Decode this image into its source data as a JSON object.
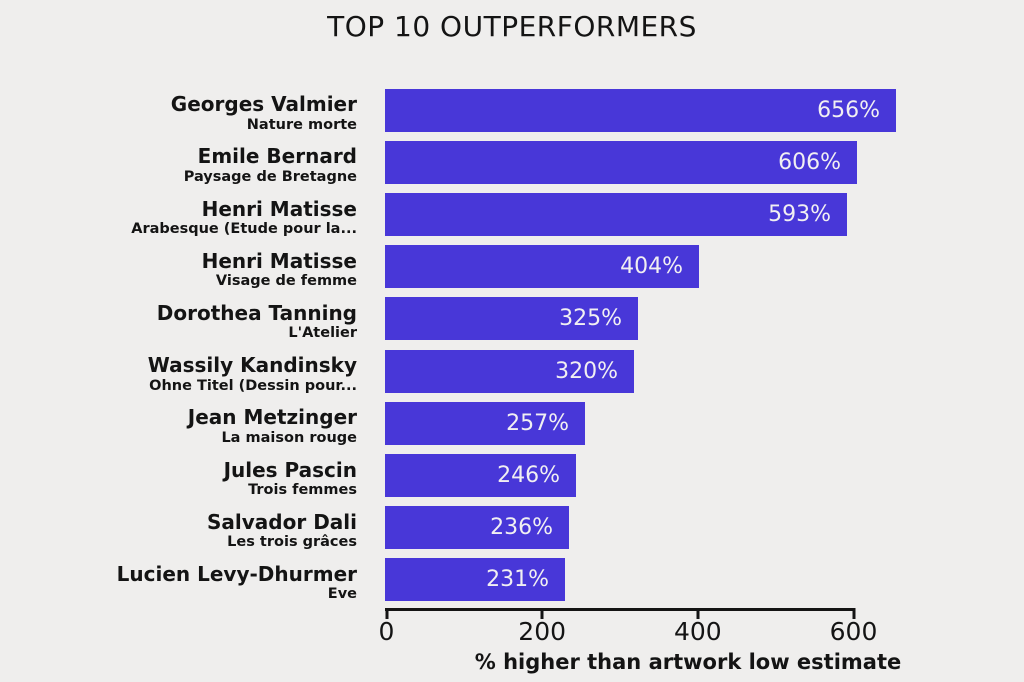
{
  "title": "TOP 10 OUTPERFORMERS",
  "colors": {
    "background": "#efeeed",
    "bar": "#4837d8",
    "bar_label": "#f1eff2",
    "text": "#141414"
  },
  "chart_data": {
    "type": "bar",
    "orientation": "horizontal",
    "title": "TOP 10 OUTPERFORMERS",
    "xlabel": "% higher than artwork low estimate",
    "xticks": [
      0,
      200,
      400,
      600
    ],
    "xlim": [
      0,
      656
    ],
    "grid": false,
    "legend": false,
    "value_suffix": "%",
    "bars": [
      {
        "artist": "Georges Valmier",
        "artwork": "Nature morte",
        "value": 656
      },
      {
        "artist": "Emile Bernard",
        "artwork": "Paysage de Bretagne",
        "value": 606
      },
      {
        "artist": "Henri Matisse",
        "artwork": "Arabesque (Etude pour la...",
        "value": 593
      },
      {
        "artist": "Henri Matisse",
        "artwork": "Visage de femme",
        "value": 404
      },
      {
        "artist": "Dorothea Tanning",
        "artwork": "L'Atelier",
        "value": 325
      },
      {
        "artist": "Wassily Kandinsky",
        "artwork": "Ohne Titel (Dessin pour...",
        "value": 320
      },
      {
        "artist": "Jean Metzinger",
        "artwork": "La maison rouge",
        "value": 257
      },
      {
        "artist": "Jules Pascin",
        "artwork": "Trois femmes",
        "value": 246
      },
      {
        "artist": "Salvador Dali",
        "artwork": "Les trois grâces",
        "value": 236
      },
      {
        "artist": "Lucien Levy-Dhurmer",
        "artwork": "Eve",
        "value": 231
      }
    ]
  }
}
